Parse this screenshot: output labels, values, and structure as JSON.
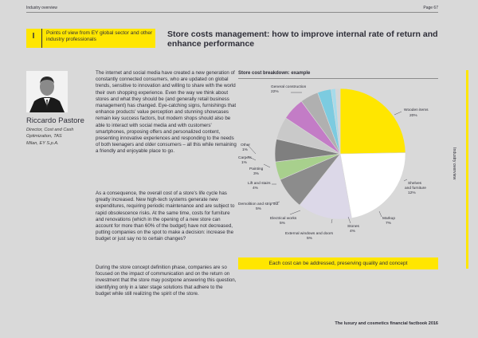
{
  "header": {
    "section": "Industry overview",
    "page": "Page 67"
  },
  "section_tag": {
    "number": "I",
    "text": "Points of view from EY global sector and other industry professionals"
  },
  "title": "Store costs management: how to improve internal rate of return and enhance performance",
  "author": {
    "name": "Riccardo Pastore",
    "role_lines": [
      "Director, Cost and Cash",
      "Optimization, TAS",
      "Milan, EY S.p.A."
    ]
  },
  "body": {
    "p1": "The internet and social media have created a new generation of constantly connected consumers, who are updated on global trends, sensitive to innovation and willing to share with the world their own shopping experience. Even the way we think about stores and what they should be (and generally retail business management) has changed. Eye-catching signs, furnishings that enhance products' value perception and stunning showcases remain key success factors, but modern shops should also be able to interact with social media and with customers' smartphones, proposing offers and personalized content, presenting innovative experiences and responding to the needs of both teenagers and older consumers – all this while remaining a friendly and enjoyable place to go.",
    "p2": "As a consequence, the overall cost of a store's life cycle has greatly increased. New high-tech systems generate new expenditures, requiring periodic maintenance and are subject to rapid obsolescence risks. At the same time, costs for furniture and renovations (which in the opening of a new store can account for more than 60% of the budget) have not decreased, putting companies on the spot to make a decision: increase the budget or just say no to certain changes?",
    "p3": "During the store concept definition phase, companies are so focused on the impact of communication and on the return on investment that the store may postpone answering this question, identifying only in a later stage solutions that adhere to the budget while still realizing the spirit of the store."
  },
  "chart_data": {
    "type": "pie",
    "title": "Store cost breakdown: example",
    "slices": [
      {
        "label": "General construction",
        "value": 22,
        "color": "#ffe600"
      },
      {
        "label": "Wooden items",
        "value": 20,
        "color": "#ffffff"
      },
      {
        "label": "Shelves and furniture",
        "value": 12,
        "color": "#dcd8e8"
      },
      {
        "label": "Markup",
        "value": 7,
        "color": "#8c8c8c"
      },
      {
        "label": "Stones",
        "value": 4,
        "color": "#a8d08d"
      },
      {
        "label": "External windows and doors",
        "value": 5,
        "color": "#7f7f7f"
      },
      {
        "label": "Electrical works",
        "value": 5,
        "color": "#c9c9c9"
      },
      {
        "label": "Demolition and strip out",
        "value": 5,
        "color": "#c37cc6"
      },
      {
        "label": "Lift and stairs",
        "value": 4,
        "color": "#b0b0b0"
      },
      {
        "label": "Painting",
        "value": 3,
        "color": "#7ccbe0"
      },
      {
        "label": "Carpets",
        "value": 1,
        "color": "#a6dbea"
      },
      {
        "label": "Other",
        "value": 1,
        "color": "#d6d6d6"
      }
    ],
    "label_text": [
      {
        "name": "General construction",
        "pct": "22%"
      },
      {
        "name": "Wooden items",
        "pct": "20%"
      },
      {
        "name": "Shelves",
        "name2": "and furniture",
        "pct": "12%"
      },
      {
        "name": "Markup",
        "pct": "7%"
      },
      {
        "name": "Stones",
        "pct": "4%"
      },
      {
        "name": "External windows and doors",
        "pct": "5%"
      },
      {
        "name": "Electrical works",
        "pct": "5%"
      },
      {
        "name": "Demolition and strip out",
        "pct": "5%"
      },
      {
        "name": "Lift and stairs",
        "pct": "4%"
      },
      {
        "name": "Painting",
        "pct": "3%"
      },
      {
        "name": "Carpets",
        "pct": "1%"
      },
      {
        "name": "Other",
        "pct": "1%"
      }
    ]
  },
  "callout": "Each cost can be addressed, preserving quality and concept",
  "sidebar_label": "Industry overview",
  "footer": "The luxury and cosmetics financial factbook 2016"
}
